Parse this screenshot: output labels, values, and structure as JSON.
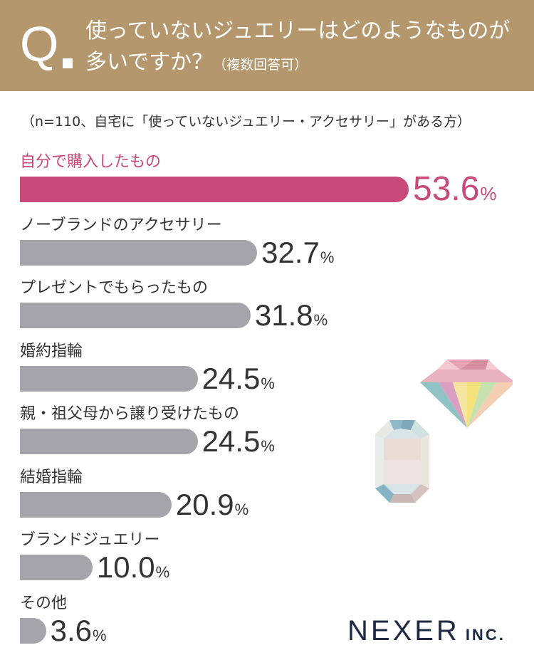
{
  "header": {
    "q_mark": "Q",
    "question_main": "使っていないジュエリーはどのようなものが多いですか？",
    "question_sub": "（複数回答可）"
  },
  "subnote": "（n=110、自宅に「使っていないジュエリー・アクセサリー」がある方）",
  "colors": {
    "header_bg": "#b5976e",
    "highlight": "#c84a78",
    "bar": "#a4a4aa",
    "text": "#333333",
    "brand": "#1f2a44"
  },
  "brand": {
    "name": "NEXER",
    "suffix": "INC."
  },
  "chart_data": {
    "type": "bar",
    "orientation": "horizontal",
    "unit": "%",
    "categories": [
      "自分で購入したもの",
      "ノーブランドのアクセサリー",
      "プレゼントでもらったもの",
      "婚約指輪",
      "親・祖父母から譲り受けたもの",
      "結婚指輪",
      "ブランドジュエリー",
      "その他"
    ],
    "values": [
      53.6,
      32.7,
      31.8,
      24.5,
      24.5,
      20.9,
      10.0,
      3.6
    ],
    "value_labels": [
      "53.6",
      "32.7",
      "31.8",
      "24.5",
      "24.5",
      "20.9",
      "10.0",
      "3.6"
    ],
    "highlight_index": 0,
    "xlim": [
      0,
      55
    ]
  }
}
